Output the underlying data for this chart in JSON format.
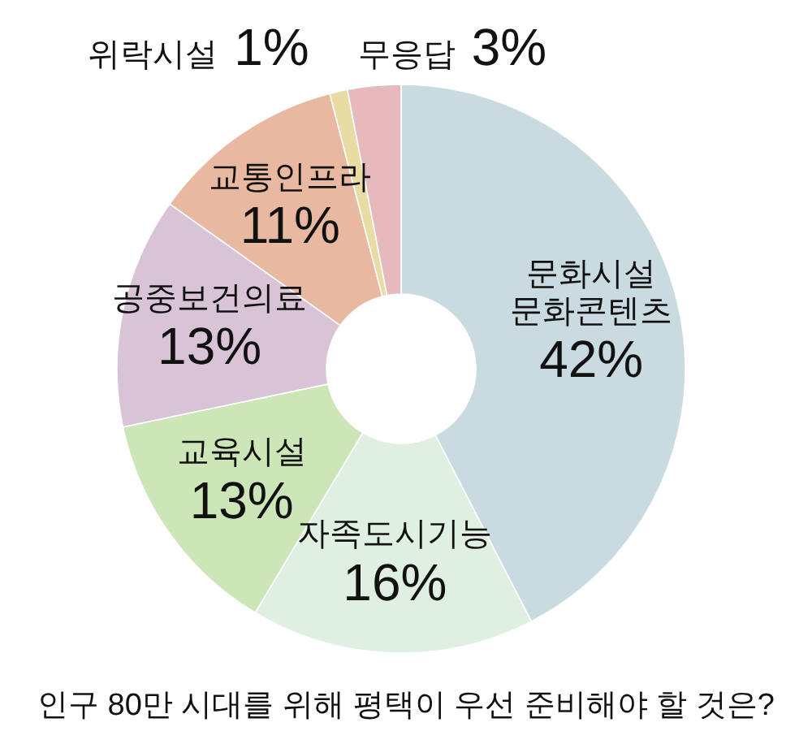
{
  "chart_data": {
    "type": "donut",
    "title": "인구 80만 시대를 위해 평택이 우선 준비해야 할 것은?",
    "categories": [
      "문화시설 문화콘텐츠",
      "자족도시기능",
      "교육시설",
      "공중보건의료",
      "교통인프라",
      "위락시설",
      "무응답"
    ],
    "values": [
      42,
      16,
      13,
      13,
      11,
      1,
      3
    ],
    "value_labels": [
      "42%",
      "16%",
      "13%",
      "13%",
      "11%",
      "1%",
      "3%"
    ],
    "colors": [
      "#c9dae1",
      "#dff0e3",
      "#cde6b8",
      "#d9c4d7",
      "#e8b8a0",
      "#e8dba4",
      "#e6b9bd"
    ]
  }
}
